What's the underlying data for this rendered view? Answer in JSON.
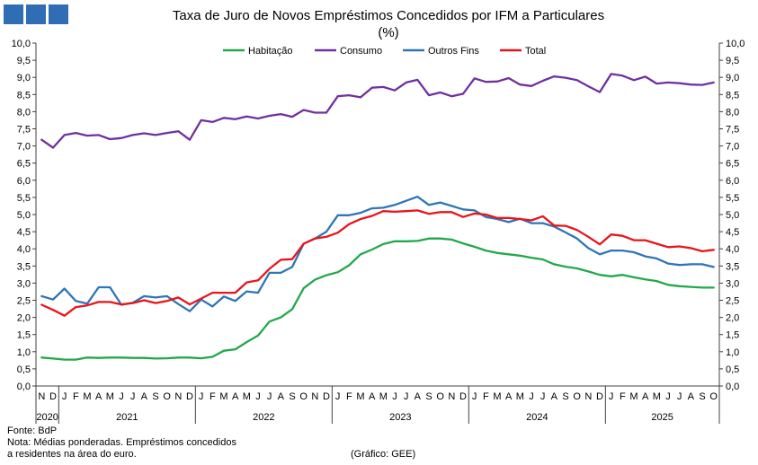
{
  "logo": {
    "color": "#2f6db5"
  },
  "chart_data": {
    "type": "line",
    "title": "Taxa de Juro de Novos Empréstimos Concedidos por IFM a Particulares",
    "subtitle": "(%)",
    "ylim": [
      0,
      10
    ],
    "yticks": [
      0,
      0.5,
      1,
      1.5,
      2,
      2.5,
      3,
      3.5,
      4,
      4.5,
      5,
      5.5,
      6,
      6.5,
      7,
      7.5,
      8,
      8.5,
      9,
      9.5,
      10
    ],
    "y_tick_labels": [
      "0,0",
      "0,5",
      "1,0",
      "1,5",
      "2,0",
      "2,5",
      "3,0",
      "3,5",
      "4,0",
      "4,5",
      "5,0",
      "5,5",
      "6,0",
      "6,5",
      "7,0",
      "7,5",
      "8,0",
      "8,5",
      "9,0",
      "9,5",
      "10,0"
    ],
    "categories": [
      "N",
      "D",
      "J",
      "F",
      "M",
      "A",
      "M",
      "J",
      "J",
      "A",
      "S",
      "O",
      "N",
      "D",
      "J",
      "F",
      "M",
      "A",
      "M",
      "J",
      "J",
      "A",
      "S",
      "O",
      "N",
      "D",
      "J",
      "F",
      "M",
      "A",
      "M",
      "J",
      "J",
      "A",
      "S",
      "O",
      "N",
      "D",
      "J",
      "F",
      "M",
      "A",
      "M",
      "J",
      "J",
      "A",
      "S",
      "O",
      "N",
      "D",
      "J",
      "F",
      "M",
      "A",
      "M",
      "J",
      "J",
      "A",
      "S",
      "O"
    ],
    "years": [
      {
        "label": "2020",
        "months": 2
      },
      {
        "label": "2021",
        "months": 12
      },
      {
        "label": "2022",
        "months": 12
      },
      {
        "label": "2023",
        "months": 12
      },
      {
        "label": "2024",
        "months": 12
      },
      {
        "label": "2025",
        "months": 10
      }
    ],
    "series": [
      {
        "name": "Habitação",
        "color": "#22a84b",
        "values": [
          0.83,
          0.8,
          0.77,
          0.77,
          0.83,
          0.82,
          0.83,
          0.83,
          0.82,
          0.82,
          0.8,
          0.81,
          0.83,
          0.83,
          0.81,
          0.85,
          1.03,
          1.07,
          1.28,
          1.47,
          1.88,
          2.0,
          2.24,
          2.85,
          3.1,
          3.23,
          3.32,
          3.52,
          3.84,
          3.98,
          4.14,
          4.22,
          4.22,
          4.23,
          4.3,
          4.3,
          4.27,
          4.16,
          4.06,
          3.95,
          3.88,
          3.84,
          3.8,
          3.74,
          3.69,
          3.55,
          3.48,
          3.43,
          3.34,
          3.24,
          3.2,
          3.24,
          3.17,
          3.11,
          3.06,
          2.95,
          2.91,
          2.89,
          2.87,
          2.87
        ]
      },
      {
        "name": "Consumo",
        "color": "#7030a0",
        "values": [
          7.18,
          6.95,
          7.32,
          7.38,
          7.3,
          7.32,
          7.2,
          7.23,
          7.32,
          7.37,
          7.32,
          7.38,
          7.43,
          7.18,
          7.75,
          7.7,
          7.82,
          7.78,
          7.86,
          7.8,
          7.88,
          7.93,
          7.85,
          8.05,
          7.97,
          7.97,
          8.45,
          8.48,
          8.42,
          8.7,
          8.72,
          8.62,
          8.85,
          8.93,
          8.48,
          8.56,
          8.45,
          8.52,
          8.97,
          8.87,
          8.88,
          8.98,
          8.79,
          8.75,
          8.9,
          9.03,
          8.99,
          8.92,
          8.74,
          8.57,
          9.1,
          9.05,
          8.92,
          9.02,
          8.82,
          8.85,
          8.83,
          8.79,
          8.78,
          8.85
        ]
      },
      {
        "name": "Outros Fins",
        "color": "#2e75b6",
        "values": [
          2.62,
          2.52,
          2.84,
          2.48,
          2.4,
          2.88,
          2.88,
          2.37,
          2.43,
          2.62,
          2.58,
          2.62,
          2.39,
          2.18,
          2.52,
          2.32,
          2.61,
          2.48,
          2.76,
          2.72,
          3.3,
          3.3,
          3.47,
          4.15,
          4.3,
          4.5,
          4.98,
          4.98,
          5.05,
          5.18,
          5.2,
          5.28,
          5.4,
          5.52,
          5.28,
          5.35,
          5.25,
          5.15,
          5.12,
          4.93,
          4.87,
          4.78,
          4.88,
          4.75,
          4.75,
          4.65,
          4.48,
          4.3,
          4.02,
          3.84,
          3.95,
          3.95,
          3.9,
          3.78,
          3.72,
          3.57,
          3.53,
          3.55,
          3.55,
          3.47
        ]
      },
      {
        "name": "Total",
        "color": "#e8141c",
        "values": [
          2.37,
          2.22,
          2.05,
          2.3,
          2.35,
          2.45,
          2.45,
          2.38,
          2.42,
          2.5,
          2.42,
          2.48,
          2.58,
          2.38,
          2.55,
          2.72,
          2.72,
          2.72,
          3.02,
          3.08,
          3.42,
          3.68,
          3.7,
          4.15,
          4.3,
          4.35,
          4.47,
          4.72,
          4.87,
          4.96,
          5.1,
          5.08,
          5.1,
          5.12,
          5.02,
          5.07,
          5.07,
          4.93,
          5.03,
          5.0,
          4.9,
          4.9,
          4.87,
          4.83,
          4.95,
          4.68,
          4.67,
          4.55,
          4.35,
          4.13,
          4.42,
          4.38,
          4.25,
          4.25,
          4.15,
          4.05,
          4.07,
          4.02,
          3.93,
          3.97
        ]
      }
    ]
  },
  "footer": {
    "source": "Fonte: BdP",
    "note_line1": "Nota: Médias ponderadas. Empréstimos concedidos",
    "note_line2": "a residentes na área do euro.",
    "credit": "(Gráfico: GEE)"
  }
}
